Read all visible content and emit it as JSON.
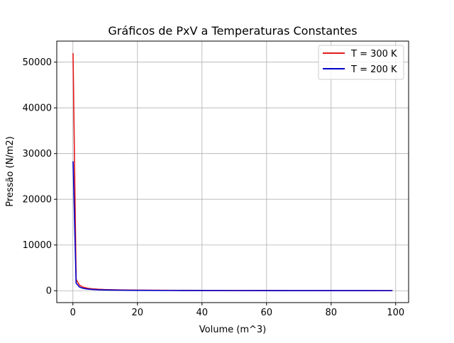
{
  "chart_data": {
    "type": "line",
    "title": "Gráficos de PxV a Temperaturas Constantes",
    "xlabel": "Volume (m^3)",
    "ylabel": "Pressão (N/m2)",
    "xlim": [
      -5,
      104
    ],
    "ylim": [
      -2600,
      54600
    ],
    "xticks": [
      0,
      20,
      40,
      60,
      80,
      100
    ],
    "yticks": [
      0,
      10000,
      20000,
      30000,
      40000,
      50000
    ],
    "grid": true,
    "legend_position": "upper right",
    "series": [
      {
        "name": "T = 300 K",
        "color": "#e41a1c",
        "x": [
          0.048,
          1,
          2,
          3,
          4,
          5,
          6,
          8,
          10,
          15,
          20,
          30,
          40,
          50,
          60,
          70,
          80,
          90,
          99
        ],
        "y": [
          51960,
          2494,
          1247,
          831,
          624,
          499,
          416,
          312,
          249,
          166,
          125,
          83,
          62,
          50,
          42,
          36,
          31,
          28,
          25
        ]
      },
      {
        "name": "T = 200 K",
        "color": "#0000cc",
        "x": [
          0.058,
          1,
          2,
          3,
          4,
          5,
          6,
          8,
          10,
          15,
          20,
          30,
          40,
          50,
          60,
          70,
          80,
          90,
          99
        ],
        "y": [
          28300,
          1663,
          831,
          554,
          416,
          333,
          277,
          208,
          166,
          111,
          83,
          55,
          42,
          33,
          28,
          24,
          21,
          18,
          17
        ]
      }
    ]
  }
}
